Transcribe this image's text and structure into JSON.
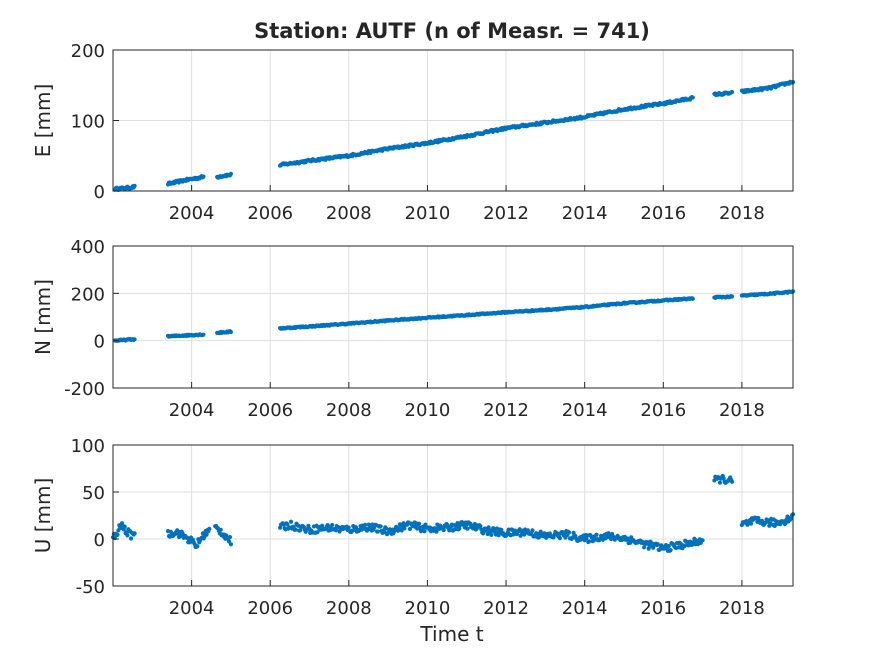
{
  "figure": {
    "title": "Station: AUTF (n of Measr. = 741)",
    "xlabel": "Time t",
    "marker_color": "#0072BD"
  },
  "chart_data": [
    {
      "type": "scatter",
      "title": "Station: AUTF (n of Measr. = 741)",
      "xlabel": "",
      "ylabel": "E [mm]",
      "xlim": [
        2002.0,
        2019.3
      ],
      "ylim": [
        0,
        200
      ],
      "xticks": [
        2004,
        2006,
        2008,
        2010,
        2012,
        2014,
        2016,
        2018
      ],
      "yticks": [
        0,
        100,
        200
      ],
      "grid": true,
      "series": [
        {
          "segments": [
            {
              "x": [
                2002.05,
                2002.3,
                2002.55
              ],
              "y": [
                3,
                4,
                6
              ]
            },
            {
              "x": [
                2003.4,
                2003.8,
                2004.3
              ],
              "y": [
                10,
                15,
                20
              ]
            },
            {
              "x": [
                2004.65,
                2004.85,
                2005.0
              ],
              "y": [
                20,
                22,
                23
              ]
            },
            {
              "x": [
                2006.25,
                2007.0,
                2008.0,
                2009.0,
                2010.0,
                2011.0,
                2012.0,
                2013.0,
                2014.0,
                2015.0,
                2016.0,
                2016.75
              ],
              "y": [
                37,
                43,
                50,
                60,
                68,
                78,
                89,
                97,
                105,
                116,
                124,
                132
              ]
            },
            {
              "x": [
                2017.3,
                2017.75
              ],
              "y": [
                137,
                139
              ]
            },
            {
              "x": [
                2018.0,
                2018.7,
                2019.3
              ],
              "y": [
                141,
                146,
                155
              ]
            }
          ],
          "noise": 1.6
        }
      ]
    },
    {
      "type": "scatter",
      "xlabel": "",
      "ylabel": "N [mm]",
      "xlim": [
        2002.0,
        2019.3
      ],
      "ylim": [
        -200,
        400
      ],
      "xticks": [
        2004,
        2006,
        2008,
        2010,
        2012,
        2014,
        2016,
        2018
      ],
      "yticks": [
        -200,
        0,
        200,
        400
      ],
      "grid": true,
      "series": [
        {
          "segments": [
            {
              "x": [
                2002.05,
                2002.3,
                2002.55
              ],
              "y": [
                0,
                3,
                6
              ]
            },
            {
              "x": [
                2003.4,
                2003.8,
                2004.3
              ],
              "y": [
                18,
                22,
                26
              ]
            },
            {
              "x": [
                2004.65,
                2004.85,
                2005.0
              ],
              "y": [
                33,
                36,
                38
              ]
            },
            {
              "x": [
                2006.25,
                2007.0,
                2008.0,
                2009.0,
                2010.0,
                2011.0,
                2012.0,
                2013.0,
                2014.0,
                2015.0,
                2016.0,
                2016.75
              ],
              "y": [
                52,
                60,
                72,
                85,
                97,
                108,
                120,
                130,
                142,
                158,
                170,
                178
              ]
            },
            {
              "x": [
                2017.3,
                2017.75
              ],
              "y": [
                183,
                186
              ]
            },
            {
              "x": [
                2018.0,
                2018.7,
                2019.3
              ],
              "y": [
                190,
                198,
                207
              ]
            }
          ],
          "noise": 2.5
        }
      ]
    },
    {
      "type": "scatter",
      "xlabel": "Time t",
      "ylabel": "U [mm]",
      "xlim": [
        2002.0,
        2019.3
      ],
      "ylim": [
        -50,
        100
      ],
      "xticks": [
        2004,
        2006,
        2008,
        2010,
        2012,
        2014,
        2016,
        2018
      ],
      "yticks": [
        -50,
        0,
        50,
        100
      ],
      "grid": true,
      "series": [
        {
          "segments": [
            {
              "x": [
                2002.0,
                2002.1,
                2002.2,
                2002.3,
                2002.45,
                2002.55
              ],
              "y": [
                1,
                5,
                15,
                10,
                4,
                8
              ]
            },
            {
              "x": [
                2003.4,
                2003.6,
                2003.8,
                2004.0,
                2004.1,
                2004.3,
                2004.45
              ],
              "y": [
                5,
                8,
                3,
                -2,
                -8,
                4,
                9
              ]
            },
            {
              "x": [
                2004.6,
                2004.75,
                2004.9,
                2005.0
              ],
              "y": [
                12,
                8,
                2,
                -3
              ]
            },
            {
              "x": [
                2006.25,
                2006.5,
                2007.0,
                2007.5,
                2008.0,
                2008.5,
                2009.0,
                2009.5,
                2010.0,
                2010.5,
                2011.0,
                2011.5,
                2012.0,
                2012.5,
                2013.0,
                2013.5,
                2014.0,
                2014.5,
                2015.0,
                2015.5,
                2016.0,
                2016.5,
                2016.75,
                2017.0
              ],
              "y": [
                12,
                15,
                10,
                12,
                10,
                13,
                8,
                15,
                11,
                12,
                15,
                9,
                6,
                8,
                3,
                5,
                0,
                3,
                1,
                -5,
                -10,
                -6,
                -4,
                -1
              ]
            },
            {
              "x": [
                2017.3,
                2017.45,
                2017.6,
                2017.75
              ],
              "y": [
                62,
                64,
                63,
                61
              ]
            },
            {
              "x": [
                2018.0,
                2018.3,
                2018.6,
                2018.9,
                2019.1,
                2019.3
              ],
              "y": [
                15,
                19,
                18,
                17,
                20,
                24
              ]
            }
          ],
          "noise": 4.0
        }
      ]
    }
  ]
}
